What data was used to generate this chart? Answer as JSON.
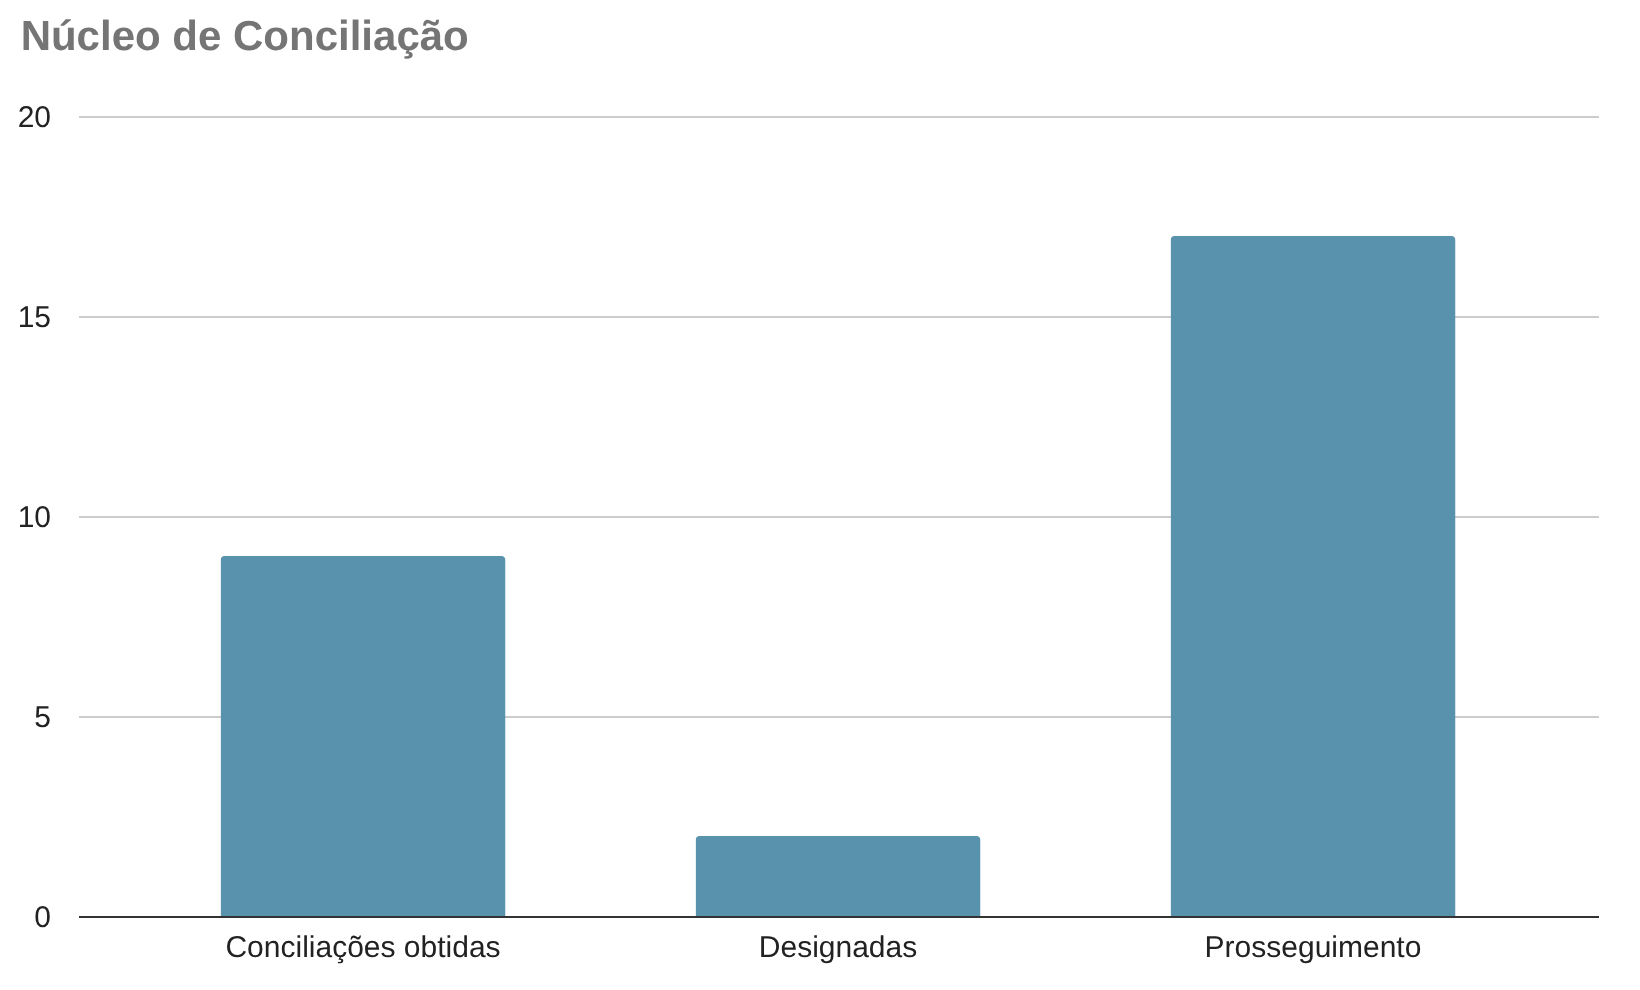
{
  "chart_data": {
    "type": "bar",
    "title": "Núcleo de Conciliação",
    "categories": [
      "Conciliações obtidas",
      "Designadas",
      "Prosseguimento"
    ],
    "values": [
      9,
      2,
      17
    ],
    "color": "#5892ad",
    "ylim": [
      0,
      20
    ],
    "yticks": [
      0,
      5,
      10,
      15,
      20
    ],
    "grid": "y"
  }
}
